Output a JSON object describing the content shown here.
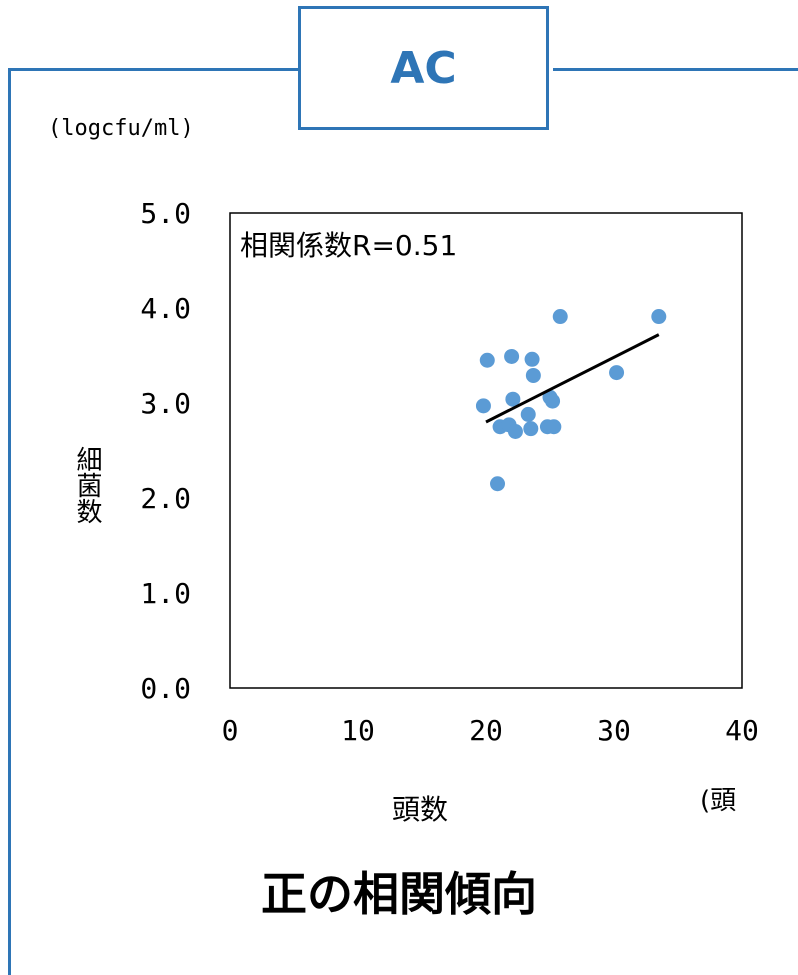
{
  "header": {
    "tag": "AC"
  },
  "units": {
    "y": "(logcfu/ml)",
    "x": "(頭"
  },
  "caption": "正の相関傾向",
  "colors": {
    "frame": "#2E75B6",
    "points": "#5B9BD5",
    "trendline": "#000000"
  },
  "chart_data": {
    "type": "scatter",
    "xlabel": "頭数",
    "ylabel": "細菌数",
    "xlim": [
      0,
      40
    ],
    "ylim": [
      0,
      5
    ],
    "xticks": [
      "0",
      "10",
      "20",
      "30",
      "40"
    ],
    "yticks": [
      "0.0",
      "1.0",
      "2.0",
      "3.0",
      "4.0",
      "5.0"
    ],
    "annotation": "相関係数R=0.51",
    "grid": false,
    "series": [
      {
        "points": [
          [
            19.8,
            2.97
          ],
          [
            20.1,
            3.45
          ],
          [
            20.9,
            2.15
          ],
          [
            21.1,
            2.75
          ],
          [
            21.8,
            2.77
          ],
          [
            22.0,
            3.49
          ],
          [
            22.1,
            3.04
          ],
          [
            22.3,
            2.7
          ],
          [
            23.3,
            2.88
          ],
          [
            23.5,
            2.73
          ],
          [
            23.6,
            3.46
          ],
          [
            23.7,
            3.29
          ],
          [
            24.8,
            2.75
          ],
          [
            25.0,
            3.06
          ],
          [
            25.2,
            3.02
          ],
          [
            25.3,
            2.75
          ],
          [
            25.8,
            3.91
          ],
          [
            30.2,
            3.32
          ],
          [
            33.5,
            3.91
          ]
        ]
      }
    ],
    "trendline": {
      "x": [
        20.0,
        33.5
      ],
      "y": [
        2.8,
        3.72
      ]
    }
  }
}
